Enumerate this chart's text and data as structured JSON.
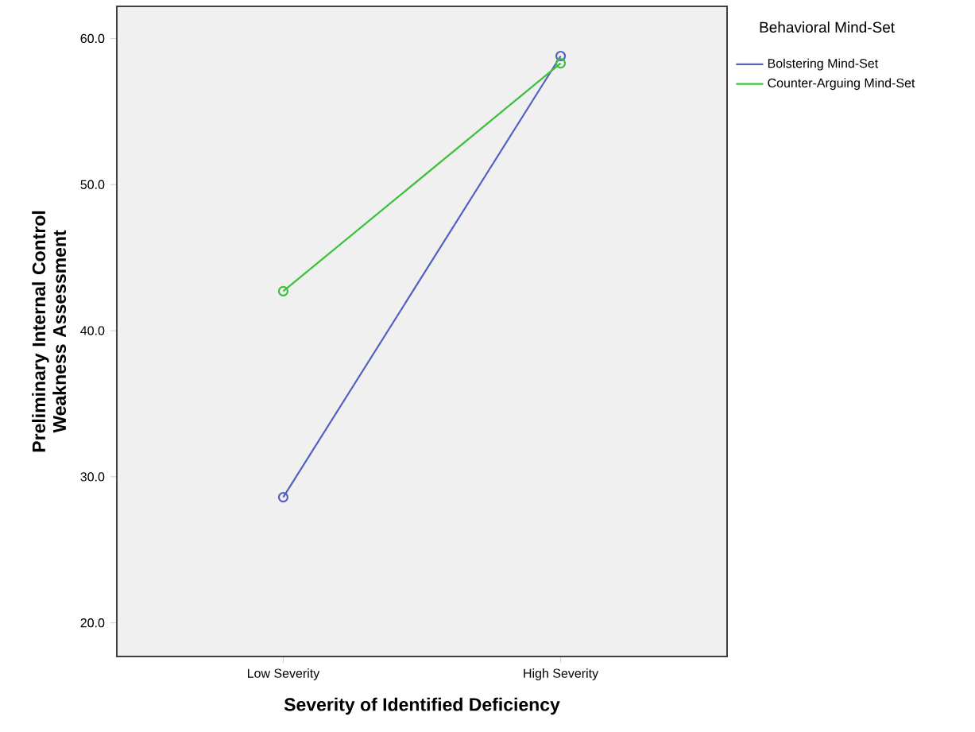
{
  "chart_data": {
    "type": "line",
    "xlabel": "Severity of Identified Deficiency",
    "ylabel": "Preliminary Internal Control Weakness Assessment",
    "legend_title": "Behavioral Mind-Set",
    "categories": [
      "Low Severity",
      "High Severity"
    ],
    "series": [
      {
        "name": "Bolstering Mind-Set",
        "color": "#5460c0",
        "values": [
          28.6,
          58.8
        ]
      },
      {
        "name": "Counter-Arguing Mind-Set",
        "color": "#3cc03c",
        "values": [
          42.7,
          58.3
        ]
      }
    ],
    "ylim": [
      17.7,
      62.2
    ],
    "yticks": [
      {
        "value": 20,
        "label": "20.0"
      },
      {
        "value": 30,
        "label": "30.0"
      },
      {
        "value": 40,
        "label": "40.0"
      },
      {
        "value": 50,
        "label": "50.0"
      },
      {
        "value": 60,
        "label": "60.0"
      }
    ],
    "grid": false,
    "legend": "top right",
    "marker": "circle",
    "line_style": "solid"
  }
}
